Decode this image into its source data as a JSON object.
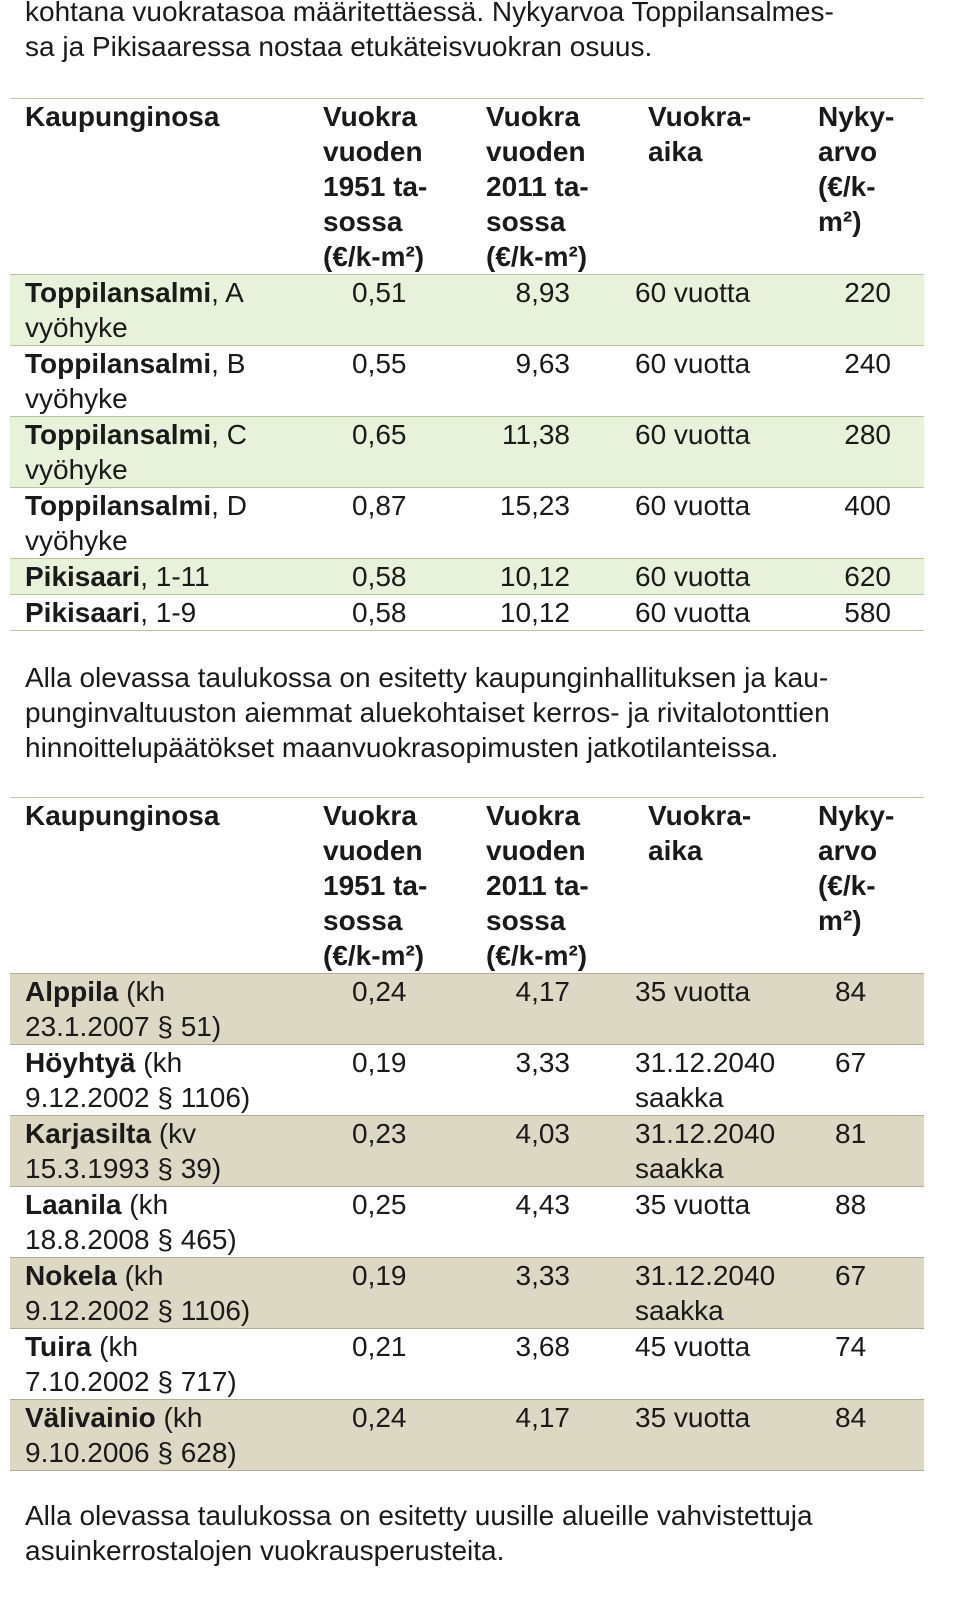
{
  "intro": {
    "lines": [
      "kohtana vuokratasoa määritettäessä. Nykyarvoa Toppilansalmes-",
      "sa ja Pikisaaressa nostaa etukäteisvuokran osuus."
    ]
  },
  "headers": {
    "kaupunginosa": "Kaupunginosa",
    "v1951": [
      "Vuokra",
      "vuoden",
      "1951 ta-",
      "sossa",
      "(€/k-m²)"
    ],
    "v2011": [
      "Vuokra",
      "vuoden",
      "2011 ta-",
      "sossa",
      "(€/k-m²)"
    ],
    "aika": [
      "Vuokra-",
      "aika"
    ],
    "nykyarvo": [
      "Nyky-",
      "arvo",
      "(€/k-",
      "m²)"
    ]
  },
  "table1": {
    "rows": [
      {
        "name": "Toppilansalmi",
        "suffix": ", A",
        "sub": "vyöhyke",
        "v1951": "0,51",
        "v2011": "8,93",
        "aika": "60 vuotta",
        "aika_sub": "",
        "nykyarvo": "220"
      },
      {
        "name": "Toppilansalmi",
        "suffix": ", B",
        "sub": "vyöhyke",
        "v1951": "0,55",
        "v2011": "9,63",
        "aika": "60 vuotta",
        "aika_sub": "",
        "nykyarvo": "240"
      },
      {
        "name": "Toppilansalmi",
        "suffix": ", C",
        "sub": "vyöhyke",
        "v1951": "0,65",
        "v2011": "11,38",
        "aika": "60 vuotta",
        "aika_sub": "",
        "nykyarvo": "280"
      },
      {
        "name": "Toppilansalmi",
        "suffix": ", D",
        "sub": "vyöhyke",
        "v1951": "0,87",
        "v2011": "15,23",
        "aika": "60 vuotta",
        "aika_sub": "",
        "nykyarvo": "400"
      },
      {
        "name": "Pikisaari",
        "suffix": ", 1-11",
        "sub": "",
        "v1951": "0,58",
        "v2011": "10,12",
        "aika": "60 vuotta",
        "aika_sub": "",
        "nykyarvo": "620"
      },
      {
        "name": "Pikisaari",
        "suffix": ", 1-9",
        "sub": "",
        "v1951": "0,58",
        "v2011": "10,12",
        "aika": "60 vuotta",
        "aika_sub": "",
        "nykyarvo": "580"
      }
    ]
  },
  "middle": {
    "lines": [
      "Alla olevassa taulukossa on esitetty kaupunginhallituksen ja kau-",
      "punginvaltuuston aiemmat aluekohtaiset kerros- ja rivitalotonttien",
      "hinnoittelupäätökset maanvuokrasopimusten jatkotilanteissa."
    ]
  },
  "table2": {
    "rows": [
      {
        "name": "Alppila",
        "suffix": " (kh",
        "sub": "23.1.2007 § 51)",
        "v1951": "0,24",
        "v2011": "4,17",
        "aika": "35 vuotta",
        "aika_sub": "",
        "nykyarvo": "84"
      },
      {
        "name": "Höyhtyä",
        "suffix": " (kh",
        "sub": "9.12.2002 § 1106)",
        "v1951": "0,19",
        "v2011": "3,33",
        "aika": "31.12.2040",
        "aika_sub": "saakka",
        "nykyarvo": "67"
      },
      {
        "name": "Karjasilta",
        "suffix": " (kv",
        "sub": "15.3.1993 § 39)",
        "v1951": "0,23",
        "v2011": "4,03",
        "aika": "31.12.2040",
        "aika_sub": "saakka",
        "nykyarvo": "81"
      },
      {
        "name": "Laanila",
        "suffix": " (kh",
        "sub": "18.8.2008 § 465)",
        "v1951": "0,25",
        "v2011": "4,43",
        "aika": "35 vuotta",
        "aika_sub": "",
        "nykyarvo": "88"
      },
      {
        "name": "Nokela",
        "suffix": " (kh",
        "sub": "9.12.2002 § 1106)",
        "v1951": "0,19",
        "v2011": "3,33",
        "aika": "31.12.2040",
        "aika_sub": "saakka",
        "nykyarvo": "67"
      },
      {
        "name": "Tuira",
        "suffix": " (kh",
        "sub": "7.10.2002 § 717)",
        "v1951": "0,21",
        "v2011": "3,68",
        "aika": "45 vuotta",
        "aika_sub": "",
        "nykyarvo": "74"
      },
      {
        "name": "Välivainio",
        "suffix": " (kh",
        "sub": "9.10.2006 § 628)",
        "v1951": "0,24",
        "v2011": "4,17",
        "aika": "35 vuotta",
        "aika_sub": "",
        "nykyarvo": "84"
      }
    ]
  },
  "outro": {
    "lines": [
      "Alla olevassa taulukossa on esitetty uusille alueille vahvistettuja",
      "asuinkerrostalojen vuokrausperusteita."
    ]
  }
}
